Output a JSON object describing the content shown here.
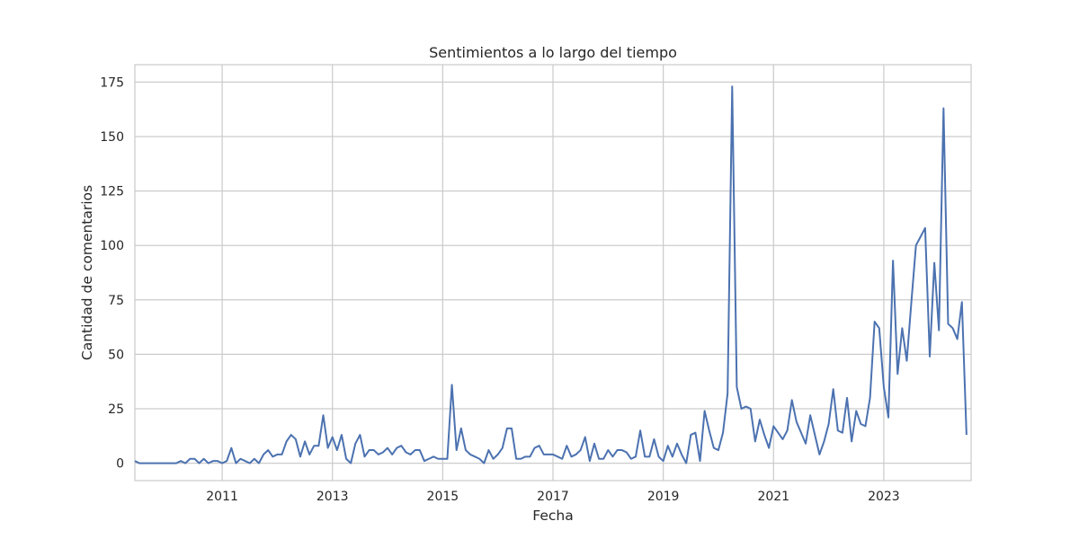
{
  "chart_data": {
    "type": "line",
    "title": "Sentimientos a lo largo del tiempo",
    "xlabel": "Fecha",
    "ylabel": "Cantidad de comentarios",
    "grid": true,
    "xlim": [
      "2009-06",
      "2024-08"
    ],
    "ylim": [
      -8,
      183
    ],
    "x_ticks": [
      "2011",
      "2013",
      "2015",
      "2017",
      "2019",
      "2021",
      "2023"
    ],
    "y_ticks": [
      0,
      25,
      50,
      75,
      100,
      125,
      150,
      175
    ],
    "colors": {
      "line": "#4c72b0",
      "grid": "#cccccc",
      "frame": "#cccccc"
    },
    "series": [
      {
        "points": [
          [
            "2009-06",
            1
          ],
          [
            "2009-07",
            0
          ],
          [
            "2009-08",
            0
          ],
          [
            "2009-09",
            0
          ],
          [
            "2009-10",
            0
          ],
          [
            "2009-11",
            0
          ],
          [
            "2009-12",
            0
          ],
          [
            "2010-01",
            0
          ],
          [
            "2010-02",
            0
          ],
          [
            "2010-03",
            0
          ],
          [
            "2010-04",
            1
          ],
          [
            "2010-05",
            0
          ],
          [
            "2010-06",
            2
          ],
          [
            "2010-07",
            2
          ],
          [
            "2010-08",
            0
          ],
          [
            "2010-09",
            2
          ],
          [
            "2010-10",
            0
          ],
          [
            "2010-11",
            1
          ],
          [
            "2010-12",
            1
          ],
          [
            "2011-01",
            0
          ],
          [
            "2011-02",
            1
          ],
          [
            "2011-03",
            7
          ],
          [
            "2011-04",
            0
          ],
          [
            "2011-05",
            2
          ],
          [
            "2011-06",
            1
          ],
          [
            "2011-07",
            0
          ],
          [
            "2011-08",
            2
          ],
          [
            "2011-09",
            0
          ],
          [
            "2011-10",
            4
          ],
          [
            "2011-11",
            6
          ],
          [
            "2011-12",
            3
          ],
          [
            "2012-01",
            4
          ],
          [
            "2012-02",
            4
          ],
          [
            "2012-03",
            10
          ],
          [
            "2012-04",
            13
          ],
          [
            "2012-05",
            11
          ],
          [
            "2012-06",
            3
          ],
          [
            "2012-07",
            10
          ],
          [
            "2012-08",
            4
          ],
          [
            "2012-09",
            8
          ],
          [
            "2012-10",
            8
          ],
          [
            "2012-11",
            22
          ],
          [
            "2012-12",
            7
          ],
          [
            "2013-01",
            12
          ],
          [
            "2013-02",
            6
          ],
          [
            "2013-03",
            13
          ],
          [
            "2013-04",
            2
          ],
          [
            "2013-05",
            0
          ],
          [
            "2013-06",
            9
          ],
          [
            "2013-07",
            13
          ],
          [
            "2013-08",
            3
          ],
          [
            "2013-09",
            6
          ],
          [
            "2013-10",
            6
          ],
          [
            "2013-11",
            4
          ],
          [
            "2013-12",
            5
          ],
          [
            "2014-01",
            7
          ],
          [
            "2014-02",
            4
          ],
          [
            "2014-03",
            7
          ],
          [
            "2014-04",
            8
          ],
          [
            "2014-05",
            5
          ],
          [
            "2014-06",
            4
          ],
          [
            "2014-07",
            6
          ],
          [
            "2014-08",
            6
          ],
          [
            "2014-09",
            1
          ],
          [
            "2014-10",
            2
          ],
          [
            "2014-11",
            3
          ],
          [
            "2014-12",
            2
          ],
          [
            "2015-01",
            2
          ],
          [
            "2015-02",
            2
          ],
          [
            "2015-03",
            36
          ],
          [
            "2015-04",
            6
          ],
          [
            "2015-05",
            16
          ],
          [
            "2015-06",
            6
          ],
          [
            "2015-07",
            4
          ],
          [
            "2015-08",
            3
          ],
          [
            "2015-09",
            2
          ],
          [
            "2015-10",
            0
          ],
          [
            "2015-11",
            6
          ],
          [
            "2015-12",
            2
          ],
          [
            "2016-01",
            4
          ],
          [
            "2016-02",
            7
          ],
          [
            "2016-03",
            16
          ],
          [
            "2016-04",
            16
          ],
          [
            "2016-05",
            2
          ],
          [
            "2016-06",
            2
          ],
          [
            "2016-07",
            3
          ],
          [
            "2016-08",
            3
          ],
          [
            "2016-09",
            7
          ],
          [
            "2016-10",
            8
          ],
          [
            "2016-11",
            4
          ],
          [
            "2016-12",
            4
          ],
          [
            "2017-01",
            4
          ],
          [
            "2017-02",
            3
          ],
          [
            "2017-03",
            2
          ],
          [
            "2017-04",
            8
          ],
          [
            "2017-05",
            3
          ],
          [
            "2017-06",
            4
          ],
          [
            "2017-07",
            6
          ],
          [
            "2017-08",
            12
          ],
          [
            "2017-09",
            1
          ],
          [
            "2017-10",
            9
          ],
          [
            "2017-11",
            2
          ],
          [
            "2017-12",
            2
          ],
          [
            "2018-01",
            6
          ],
          [
            "2018-02",
            3
          ],
          [
            "2018-03",
            6
          ],
          [
            "2018-04",
            6
          ],
          [
            "2018-05",
            5
          ],
          [
            "2018-06",
            2
          ],
          [
            "2018-07",
            3
          ],
          [
            "2018-08",
            15
          ],
          [
            "2018-09",
            3
          ],
          [
            "2018-10",
            3
          ],
          [
            "2018-11",
            11
          ],
          [
            "2018-12",
            3
          ],
          [
            "2019-01",
            1
          ],
          [
            "2019-02",
            8
          ],
          [
            "2019-03",
            3
          ],
          [
            "2019-04",
            9
          ],
          [
            "2019-05",
            4
          ],
          [
            "2019-06",
            0
          ],
          [
            "2019-07",
            13
          ],
          [
            "2019-08",
            14
          ],
          [
            "2019-09",
            1
          ],
          [
            "2019-10",
            24
          ],
          [
            "2019-11",
            15
          ],
          [
            "2019-12",
            7
          ],
          [
            "2020-01",
            6
          ],
          [
            "2020-02",
            14
          ],
          [
            "2020-03",
            32
          ],
          [
            "2020-04",
            173
          ],
          [
            "2020-05",
            35
          ],
          [
            "2020-06",
            25
          ],
          [
            "2020-07",
            26
          ],
          [
            "2020-08",
            25
          ],
          [
            "2020-09",
            10
          ],
          [
            "2020-10",
            20
          ],
          [
            "2020-11",
            13
          ],
          [
            "2020-12",
            7
          ],
          [
            "2021-01",
            17
          ],
          [
            "2021-02",
            14
          ],
          [
            "2021-03",
            11
          ],
          [
            "2021-04",
            15
          ],
          [
            "2021-05",
            29
          ],
          [
            "2021-06",
            19
          ],
          [
            "2021-07",
            14
          ],
          [
            "2021-08",
            9
          ],
          [
            "2021-09",
            22
          ],
          [
            "2021-10",
            13
          ],
          [
            "2021-11",
            4
          ],
          [
            "2021-12",
            10
          ],
          [
            "2022-01",
            18
          ],
          [
            "2022-02",
            34
          ],
          [
            "2022-03",
            15
          ],
          [
            "2022-04",
            14
          ],
          [
            "2022-05",
            30
          ],
          [
            "2022-06",
            10
          ],
          [
            "2022-07",
            24
          ],
          [
            "2022-08",
            18
          ],
          [
            "2022-09",
            17
          ],
          [
            "2022-10",
            30
          ],
          [
            "2022-11",
            65
          ],
          [
            "2022-12",
            62
          ],
          [
            "2023-01",
            35
          ],
          [
            "2023-02",
            21
          ],
          [
            "2023-03",
            93
          ],
          [
            "2023-04",
            41
          ],
          [
            "2023-05",
            62
          ],
          [
            "2023-06",
            47
          ],
          [
            "2023-07",
            74
          ],
          [
            "2023-08",
            100
          ],
          [
            "2023-09",
            104
          ],
          [
            "2023-10",
            108
          ],
          [
            "2023-11",
            49
          ],
          [
            "2023-12",
            92
          ],
          [
            "2024-01",
            61
          ],
          [
            "2024-02",
            163
          ],
          [
            "2024-03",
            64
          ],
          [
            "2024-04",
            62
          ],
          [
            "2024-05",
            57
          ],
          [
            "2024-06",
            74
          ],
          [
            "2024-07",
            13
          ]
        ]
      }
    ]
  }
}
